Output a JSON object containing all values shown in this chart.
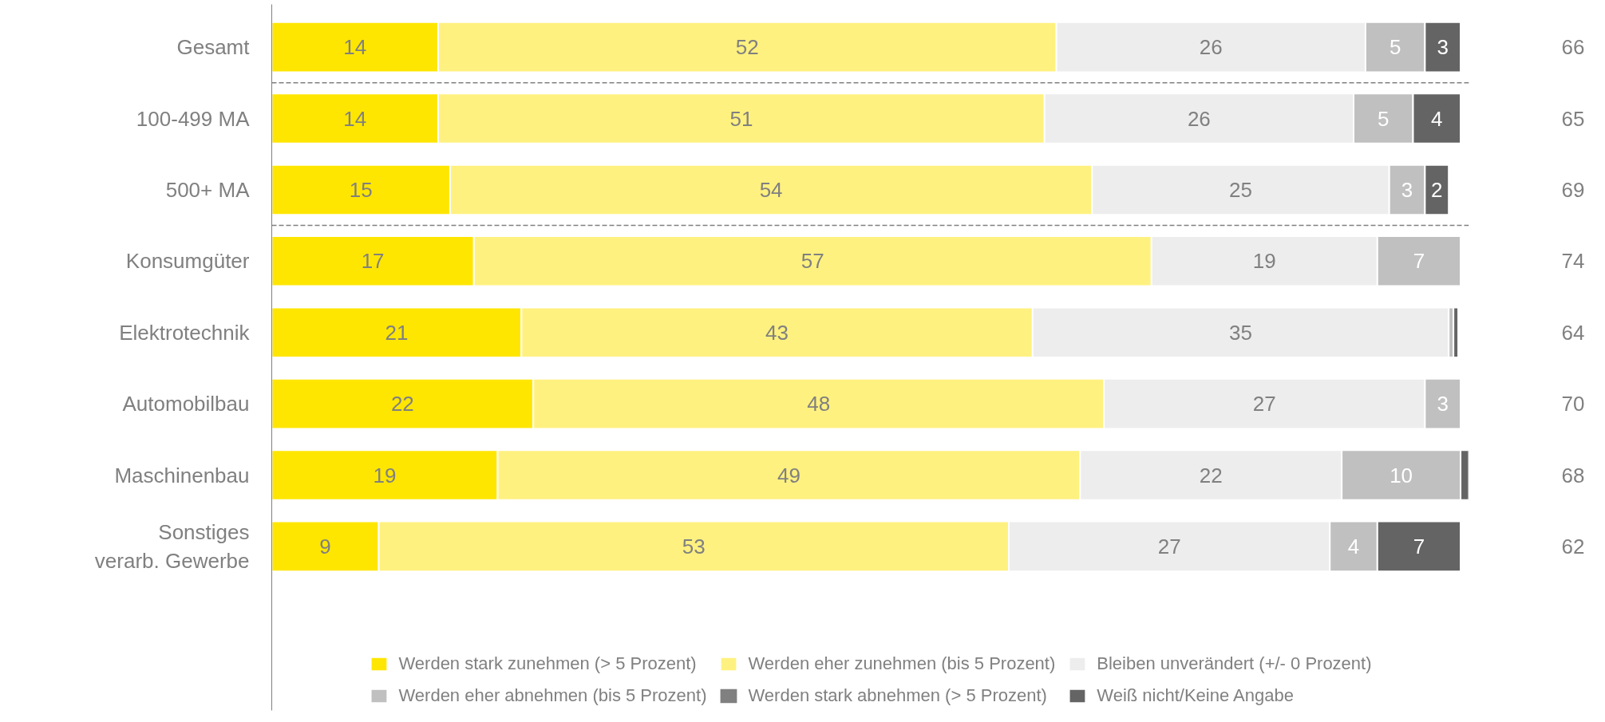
{
  "chart_data": {
    "type": "bar",
    "orientation": "horizontal",
    "stacked": true,
    "categories": [
      "Gesamt",
      "100-499 MA",
      "500+ MA",
      "Konsumgüter",
      "Elektrotechnik",
      "Automobilbau",
      "Maschinenbau",
      "Sonstiges\nverarb. Gewerbe"
    ],
    "series": [
      {
        "name": "Werden stark zunehmen (> 5 Prozent)",
        "color": "#ffe600",
        "values": [
          14,
          14,
          15,
          17,
          21,
          22,
          19,
          9
        ],
        "value_labels": [
          "14",
          "14",
          "15",
          "17",
          "21",
          "22",
          "19",
          "9"
        ]
      },
      {
        "name": "Werden eher zunehmen (bis 5 Prozent)",
        "color": "#fff17f",
        "values": [
          52,
          51,
          54,
          57,
          43,
          48,
          49,
          53
        ],
        "value_labels": [
          "52",
          "51",
          "54",
          "57",
          "43",
          "48",
          "49",
          "53"
        ]
      },
      {
        "name": "Bleiben unverändert (+/- 0 Prozent)",
        "color": "#ededed",
        "values": [
          26,
          26,
          25,
          19,
          35,
          27,
          22,
          27
        ],
        "value_labels": [
          "26",
          "26",
          "25",
          "19",
          "35",
          "27",
          "22",
          "27"
        ]
      },
      {
        "name": "Werden eher abnehmen (bis 5 Prozent)",
        "color": "#c0c0c0",
        "values": [
          5,
          5,
          3,
          7,
          0.4,
          3,
          10,
          4
        ],
        "value_labels": [
          "5",
          "5",
          "3",
          "7",
          null,
          "3",
          "10",
          "4"
        ]
      },
      {
        "name": "Werden stark abnehmen (> 5 Prozent)",
        "color": "#808080",
        "values": [
          0,
          0,
          0,
          0,
          0,
          0,
          0,
          0
        ],
        "value_labels": [
          null,
          null,
          null,
          null,
          null,
          null,
          null,
          null
        ]
      },
      {
        "name": "Weiß nicht/Keine Angabe",
        "color": "#646464",
        "values": [
          3,
          4,
          2,
          0,
          0.4,
          0,
          0.7,
          7
        ],
        "value_labels": [
          "3",
          "4",
          "2",
          null,
          null,
          null,
          null,
          "7"
        ]
      }
    ],
    "annotations": [
      "66",
      "65",
      "69",
      "74",
      "64",
      "70",
      "68",
      "62"
    ],
    "legend": "bottom",
    "grid": false
  }
}
